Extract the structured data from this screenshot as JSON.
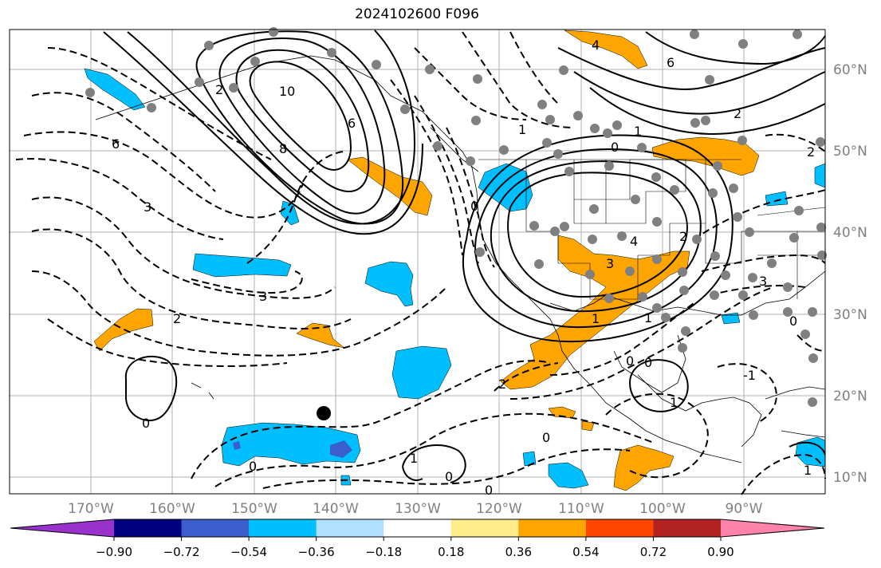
{
  "title": "2024102600 F096",
  "lon_labels": [
    "170°W",
    "160°W",
    "150°W",
    "140°W",
    "130°W",
    "120°W",
    "110°W",
    "100°W",
    "90°W"
  ],
  "lat_labels": [
    "60°N",
    "50°N",
    "40°N",
    "30°N",
    "20°N",
    "10°N"
  ],
  "colorbar": {
    "colors": [
      "#9932cc",
      "#000080",
      "#3a5fcd",
      "#00bfff",
      "#b0e2ff",
      "#ffffff",
      "#ffec8b",
      "#ffa500",
      "#ff4500",
      "#b22222",
      "#ff82ab"
    ],
    "tick_labels": [
      "−0.90",
      "−0.72",
      "−0.54",
      "−0.36",
      "−0.18",
      "0.18",
      "0.36",
      "0.54",
      "0.72",
      "0.90"
    ]
  },
  "contour_labels": [
    "10",
    "8",
    "6",
    "6",
    "3",
    "3",
    "2",
    "2",
    "0",
    "1",
    "0",
    "4",
    "6",
    "2",
    "1",
    "0",
    "2",
    "4",
    "3",
    "1",
    "3",
    "0",
    "2",
    "0",
    "1",
    "0",
    "1",
    "2",
    "0",
    "1",
    "0",
    "-1",
    "0",
    "1",
    "0"
  ],
  "colors": {
    "positive_fill": "#ffa500",
    "negative_fill": "#00bfff",
    "strong_negative_fill": "#3a5fcd",
    "gridline": "#b0b0b0"
  }
}
